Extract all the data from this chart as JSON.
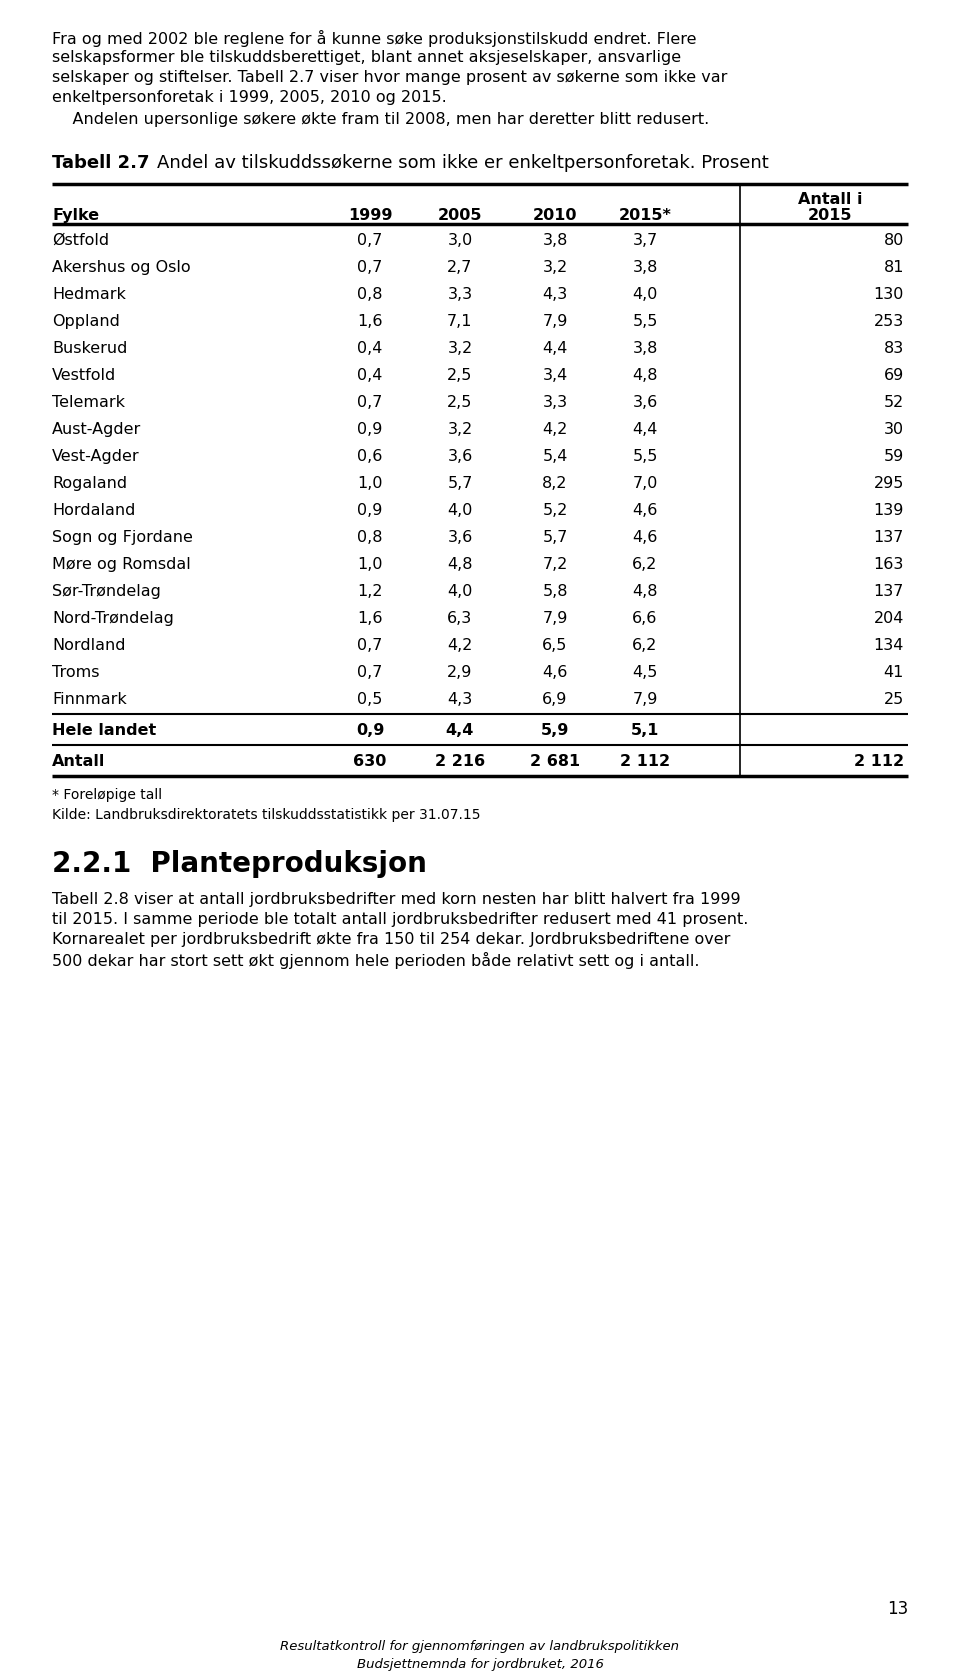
{
  "intro_lines": [
    "Fra og med 2002 ble reglene for å kunne søke produksjonstilskudd endret. Flere",
    "selskapsformer ble tilskuddsberettiget, blant annet aksjeselskaper, ansvarlige",
    "selskaper og stiftelser. Tabell 2.7 viser hvor mange prosent av søkerne som ikke var",
    "enkeltpersonforetak i 1999, 2005, 2010 og 2015."
  ],
  "indent_line": "    Andelen upersonlige søkere økte fram til 2008, men har deretter blitt redusert.",
  "table_num": "Tabell 2.7",
  "table_desc": "Andel av tilskuddssøkerne som ikke er enkeltpersonforetak. Prosent",
  "data_rows": [
    [
      "Østfold",
      "0,7",
      "3,0",
      "3,8",
      "3,7",
      "80"
    ],
    [
      "Akershus og Oslo",
      "0,7",
      "2,7",
      "3,2",
      "3,8",
      "81"
    ],
    [
      "Hedmark",
      "0,8",
      "3,3",
      "4,3",
      "4,0",
      "130"
    ],
    [
      "Oppland",
      "1,6",
      "7,1",
      "7,9",
      "5,5",
      "253"
    ],
    [
      "Buskerud",
      "0,4",
      "3,2",
      "4,4",
      "3,8",
      "83"
    ],
    [
      "Vestfold",
      "0,4",
      "2,5",
      "3,4",
      "4,8",
      "69"
    ],
    [
      "Telemark",
      "0,7",
      "2,5",
      "3,3",
      "3,6",
      "52"
    ],
    [
      "Aust-Agder",
      "0,9",
      "3,2",
      "4,2",
      "4,4",
      "30"
    ],
    [
      "Vest-Agder",
      "0,6",
      "3,6",
      "5,4",
      "5,5",
      "59"
    ],
    [
      "Rogaland",
      "1,0",
      "5,7",
      "8,2",
      "7,0",
      "295"
    ],
    [
      "Hordaland",
      "0,9",
      "4,0",
      "5,2",
      "4,6",
      "139"
    ],
    [
      "Sogn og Fjordane",
      "0,8",
      "3,6",
      "5,7",
      "4,6",
      "137"
    ],
    [
      "Møre og Romsdal",
      "1,0",
      "4,8",
      "7,2",
      "6,2",
      "163"
    ],
    [
      "Sør-Trøndelag",
      "1,2",
      "4,0",
      "5,8",
      "4,8",
      "137"
    ],
    [
      "Nord-Trøndelag",
      "1,6",
      "6,3",
      "7,9",
      "6,6",
      "204"
    ],
    [
      "Nordland",
      "0,7",
      "4,2",
      "6,5",
      "6,2",
      "134"
    ],
    [
      "Troms",
      "0,7",
      "2,9",
      "4,6",
      "4,5",
      "41"
    ],
    [
      "Finnmark",
      "0,5",
      "4,3",
      "6,9",
      "7,9",
      "25"
    ]
  ],
  "hele_landet": [
    "Hele landet",
    "0,9",
    "4,4",
    "5,9",
    "5,1",
    ""
  ],
  "antall_row": [
    "Antall",
    "630",
    "2 216",
    "2 681",
    "2 112",
    "2 112"
  ],
  "footnote1": "* Foreløpige tall",
  "footnote2": "Kilde: Landbruksdirektoratets tilskuddsstatistikk per 31.07.15",
  "section_title": "2.2.1  Planteproduksjon",
  "body_lines": [
    "Tabell 2.8 viser at antall jordbruksbedrifter med korn nesten har blitt halvert fra 1999",
    "til 2015. I samme periode ble totalt antall jordbruksbedrifter redusert med 41 prosent.",
    "Kornarealet per jordbruksbedrift økte fra 150 til 254 dekar. Jordbruksbedriftene over",
    "500 dekar har stort sett økt gjennom hele perioden både relativt sett og i antall."
  ],
  "page_num": "13",
  "footer1": "Resultatkontroll for gjennomføringen av landbrukspolitikken",
  "footer2": "Budsjettnemnda for jordbruket, 2016"
}
